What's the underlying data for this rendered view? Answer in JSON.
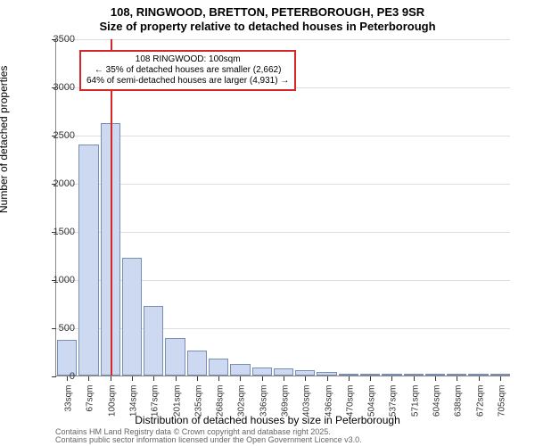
{
  "title_main": "108, RINGWOOD, BRETTON, PETERBOROUGH, PE3 9SR",
  "title_sub": "Size of property relative to detached houses in Peterborough",
  "ylabel": "Number of detached properties",
  "xlabel": "Distribution of detached houses by size in Peterborough",
  "footer_line1": "Contains HM Land Registry data © Crown copyright and database right 2025.",
  "footer_line2": "Contains public sector information licensed under the Open Government Licence v3.0.",
  "chart": {
    "type": "bar",
    "ylim": [
      0,
      3500
    ],
    "yticks": [
      0,
      500,
      1000,
      1500,
      2000,
      2500,
      3000,
      3500
    ],
    "categories": [
      "33sqm",
      "67sqm",
      "100sqm",
      "134sqm",
      "167sqm",
      "201sqm",
      "235sqm",
      "268sqm",
      "302sqm",
      "336sqm",
      "369sqm",
      "403sqm",
      "436sqm",
      "470sqm",
      "504sqm",
      "537sqm",
      "571sqm",
      "604sqm",
      "638sqm",
      "672sqm",
      "705sqm"
    ],
    "values": [
      370,
      2400,
      2620,
      1220,
      720,
      390,
      260,
      180,
      120,
      80,
      70,
      60,
      40,
      20,
      20,
      20,
      15,
      15,
      10,
      10,
      10
    ],
    "bar_fill": "#cdd9f0",
    "bar_stroke": "#7a8db5",
    "bar_width_ratio": 0.92,
    "grid_color": "#dddddd",
    "axis_color": "#888888",
    "background_color": "#ffffff",
    "refline": {
      "category_index": 2,
      "color": "#d62728"
    },
    "annotation": {
      "lines": [
        "108 RINGWOOD: 100sqm",
        "← 35% of detached houses are smaller (2,662)",
        "64% of semi-detached houses are larger (4,931) →"
      ],
      "border_color": "#d62728",
      "bg_color": "#ffffff",
      "fontsize": 10
    },
    "title_fontsize": 13,
    "label_fontsize": 12,
    "tick_fontsize": 11
  }
}
